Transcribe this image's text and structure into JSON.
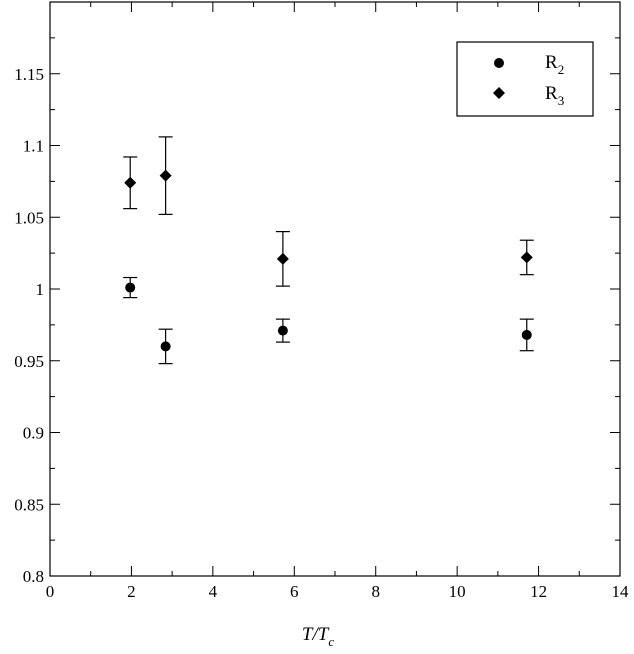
{
  "chart_data": {
    "type": "scatter",
    "xlabel": {
      "main": "T/T",
      "sub": "c"
    },
    "ylabel": "",
    "xlim": [
      0,
      14
    ],
    "ylim": [
      0.8,
      1.2
    ],
    "x_ticks": [
      0,
      2,
      4,
      6,
      8,
      10,
      12,
      14
    ],
    "x_tick_labels": [
      "0",
      "2",
      "4",
      "6",
      "8",
      "10",
      "12",
      "14"
    ],
    "y_ticks": [
      0.8,
      0.85,
      0.9,
      0.95,
      1.0,
      1.05,
      1.1,
      1.15
    ],
    "y_tick_labels": [
      "0.8",
      "0.85",
      "0.9",
      "0.95",
      "1",
      "1.05",
      "1.1",
      "1.15"
    ],
    "grid": false,
    "legend_position": "top-right",
    "series": [
      {
        "name": "R2",
        "label_main": "R",
        "label_sub": "2",
        "marker": "circle",
        "points": [
          {
            "x": 1.97,
            "y": 1.001,
            "err": 0.007
          },
          {
            "x": 2.84,
            "y": 0.96,
            "err": 0.012
          },
          {
            "x": 5.72,
            "y": 0.971,
            "err": 0.008
          },
          {
            "x": 11.71,
            "y": 0.968,
            "err": 0.011
          }
        ]
      },
      {
        "name": "R3",
        "label_main": "R",
        "label_sub": "3",
        "marker": "diamond",
        "points": [
          {
            "x": 1.97,
            "y": 1.074,
            "err": 0.018
          },
          {
            "x": 2.84,
            "y": 1.079,
            "err": 0.027
          },
          {
            "x": 5.72,
            "y": 1.021,
            "err": 0.019
          },
          {
            "x": 11.71,
            "y": 1.022,
            "err": 0.012
          }
        ]
      }
    ]
  }
}
